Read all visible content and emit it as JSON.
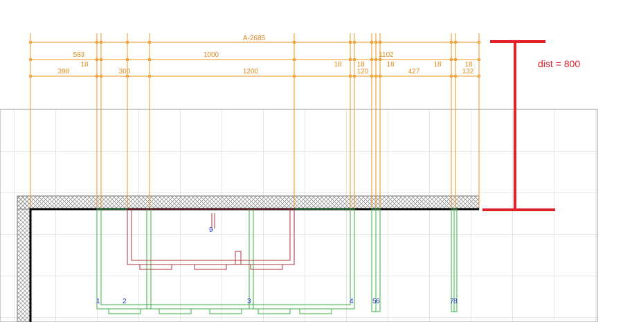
{
  "dimensions": {
    "overall": "A-2685",
    "row2": [
      "583",
      "1000",
      "1102"
    ],
    "row3": [
      "398",
      "18",
      "300",
      "1200",
      "18",
      "18",
      "120",
      "18",
      "427",
      "18",
      "18",
      "132"
    ]
  },
  "annotation": "dist = 800",
  "parts": [
    "1",
    "2",
    "3",
    "4",
    "5",
    "6",
    "7",
    "8",
    "9"
  ]
}
